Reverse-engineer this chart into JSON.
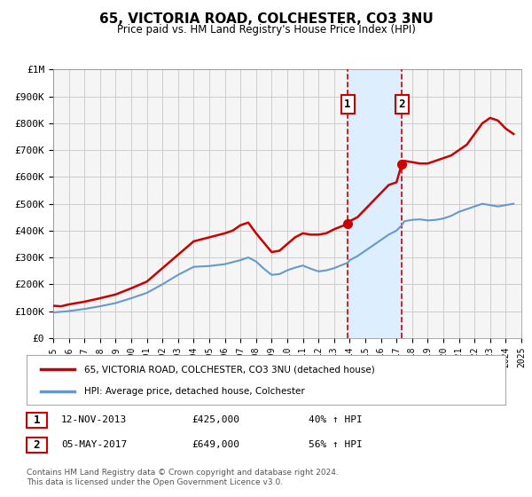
{
  "title": "65, VICTORIA ROAD, COLCHESTER, CO3 3NU",
  "subtitle": "Price paid vs. HM Land Registry's House Price Index (HPI)",
  "legend_line1": "65, VICTORIA ROAD, COLCHESTER, CO3 3NU (detached house)",
  "legend_line2": "HPI: Average price, detached house, Colchester",
  "footnote1": "Contains HM Land Registry data © Crown copyright and database right 2024.",
  "footnote2": "This data is licensed under the Open Government Licence v3.0.",
  "sale1_date": "12-NOV-2013",
  "sale1_price": "£425,000",
  "sale1_hpi": "40% ↑ HPI",
  "sale1_year": 2013.87,
  "sale1_value": 425000,
  "sale2_date": "05-MAY-2017",
  "sale2_price": "£649,000",
  "sale2_hpi": "56% ↑ HPI",
  "sale2_year": 2017.34,
  "sale2_value": 649000,
  "red_color": "#cc0000",
  "blue_color": "#6699cc",
  "highlight_fill": "#ddeeff",
  "background_color": "#f5f5f5",
  "grid_color": "#cccccc",
  "ylim_min": 0,
  "ylim_max": 1000000,
  "xlim_min": 1995,
  "xlim_max": 2025,
  "yticks": [
    0,
    100000,
    200000,
    300000,
    400000,
    500000,
    600000,
    700000,
    800000,
    900000,
    1000000
  ],
  "ytick_labels": [
    "£0",
    "£100K",
    "£200K",
    "£300K",
    "£400K",
    "£500K",
    "£600K",
    "£700K",
    "£800K",
    "£900K",
    "£1M"
  ],
  "xticks": [
    1995,
    1996,
    1997,
    1998,
    1999,
    2000,
    2001,
    2002,
    2003,
    2004,
    2005,
    2006,
    2007,
    2008,
    2009,
    2010,
    2011,
    2012,
    2013,
    2014,
    2015,
    2016,
    2017,
    2018,
    2019,
    2020,
    2021,
    2022,
    2023,
    2024,
    2025
  ]
}
